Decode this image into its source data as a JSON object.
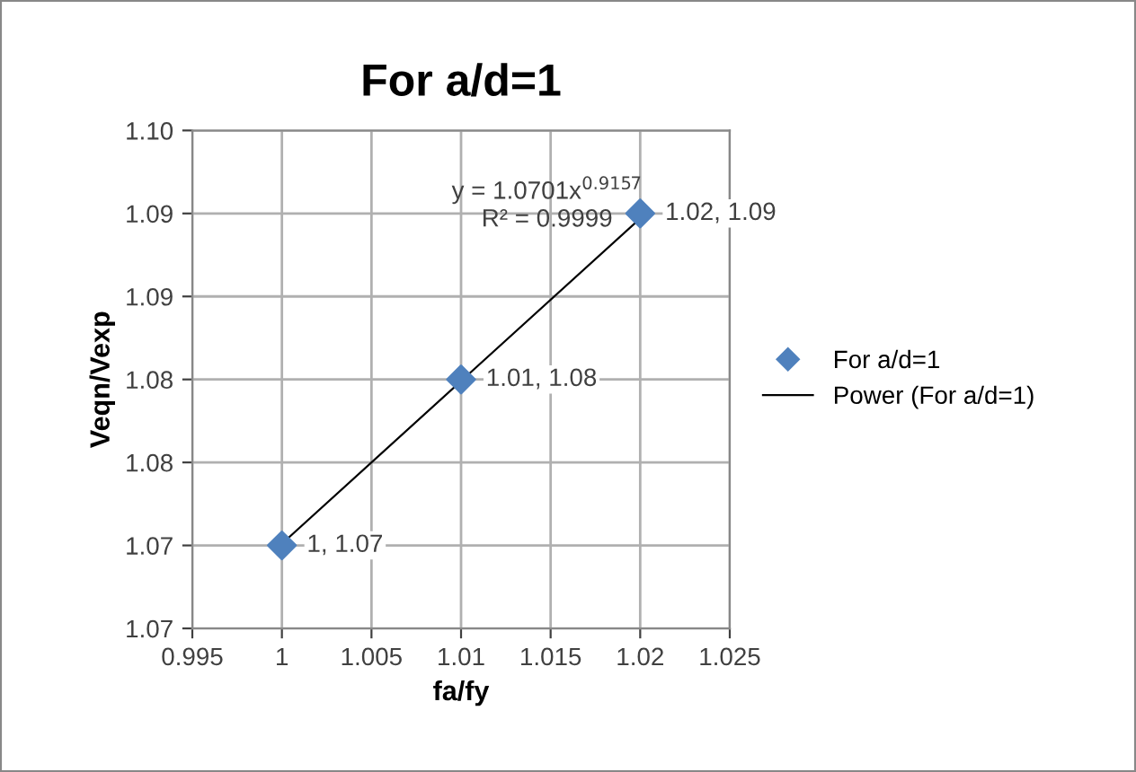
{
  "chart_data": {
    "type": "scatter",
    "title": "For a/d=1",
    "xlabel": "fa/fy",
    "ylabel": "Veqn/Vexp",
    "x": [
      1,
      1.01,
      1.02
    ],
    "series": [
      {
        "name": "For a/d=1",
        "color": "#4f81bd",
        "marker": "diamond",
        "values": [
          1.07,
          1.08,
          1.09
        ],
        "value_labels": [
          "1, 1.07",
          "1.01, 1.08",
          "1.02, 1.09"
        ]
      },
      {
        "name": "Power (For a/d=1)",
        "type": "line",
        "color": "#000000",
        "marker": "none",
        "line_style": "solid",
        "x": [
          1,
          1.01,
          1.02
        ],
        "values": [
          1.0701,
          1.0799,
          1.0897
        ]
      }
    ],
    "annotations": [
      "y = 1.0701x$^{0.9157}$",
      "R² = 0.9999"
    ],
    "xlim": [
      0.995,
      1.025
    ],
    "xticks": [
      0.995,
      1,
      1.005,
      1.01,
      1.015,
      1.02,
      1.025
    ],
    "ylim": [
      1.065,
      1.095
    ],
    "yticks": [
      {
        "value": 1.065,
        "label": "1.07"
      },
      {
        "value": 1.07,
        "label": "1.07"
      },
      {
        "value": 1.075,
        "label": "1.08"
      },
      {
        "value": 1.08,
        "label": "1.08"
      },
      {
        "value": 1.085,
        "label": "1.09"
      },
      {
        "value": 1.09,
        "label": "1.09"
      },
      {
        "value": 1.095,
        "label": "1.10"
      }
    ],
    "grid": true,
    "legend": "right"
  }
}
